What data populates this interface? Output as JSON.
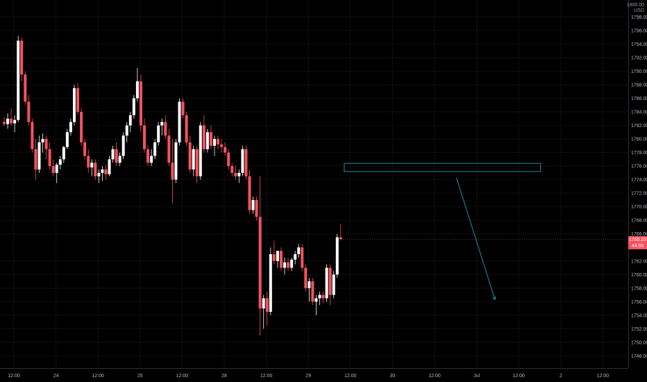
{
  "chart_data": {
    "type": "candlestick",
    "symbol_currency_lines": [
      "1800.00",
      "USD"
    ],
    "y_axis": {
      "ylim": [
        1746.2,
        1800.5
      ],
      "ticks": [
        "1798.00",
        "1796.00",
        "1794.00",
        "1792.00",
        "1790.00",
        "1788.00",
        "1786.00",
        "1784.00",
        "1782.00",
        "1780.00",
        "1778.00",
        "1776.00",
        "1774.00",
        "1772.00",
        "1770.00",
        "1768.00",
        "1766.00",
        "1762.00",
        "1760.00",
        "1758.00",
        "1756.00",
        "1754.00",
        "1752.00",
        "1750.00",
        "1748.00"
      ]
    },
    "x_axis": {
      "ticks": [
        {
          "label": "12:00",
          "bar": 0
        },
        {
          "label": "24",
          "bar": 12
        },
        {
          "label": "12:00",
          "bar": 24
        },
        {
          "label": "25",
          "bar": 36
        },
        {
          "label": "12:00",
          "bar": 48
        },
        {
          "label": "28",
          "bar": 60
        },
        {
          "label": "12:00",
          "bar": 72
        },
        {
          "label": "29",
          "bar": 84
        },
        {
          "label": "12:00",
          "bar": 96
        },
        {
          "label": "30",
          "bar": 108
        },
        {
          "label": "12:00",
          "bar": 120
        },
        {
          "label": "Jul",
          "bar": 132
        },
        {
          "label": "12:00",
          "bar": 144
        },
        {
          "label": "2",
          "bar": 156
        },
        {
          "label": "12:00",
          "bar": 168
        }
      ]
    },
    "last_price": {
      "value": "1765.23",
      "countdown": "44:56",
      "price": 1765.23
    },
    "colors": {
      "up": "#ffffff",
      "down": "#f7525f",
      "zone": "#1e90aa",
      "background": "#000000"
    },
    "annotations": {
      "zone": {
        "bar_start": 97,
        "bar_end": 153,
        "price_top": 1776.4,
        "price_bottom": 1775.2
      },
      "arrow": {
        "from_bar": 129,
        "from_price": 1774.3,
        "to_bar": 140,
        "to_price": 1756.3
      }
    },
    "candles": [
      [
        1782.5,
        1783.2,
        1781.9,
        1782.2
      ],
      [
        1782.2,
        1783.8,
        1781.5,
        1783.0
      ],
      [
        1783.0,
        1784.5,
        1782.0,
        1782.3
      ],
      [
        1782.3,
        1783.5,
        1781.0,
        1782.8
      ],
      [
        1782.8,
        1795.2,
        1782.5,
        1794.5
      ],
      [
        1794.5,
        1795.0,
        1788.5,
        1789.5
      ],
      [
        1789.5,
        1790.0,
        1785.0,
        1785.5
      ],
      [
        1785.5,
        1786.5,
        1782.0,
        1782.5
      ],
      [
        1782.5,
        1783.0,
        1778.0,
        1778.5
      ],
      [
        1778.5,
        1780.0,
        1774.0,
        1775.5
      ],
      [
        1775.5,
        1780.5,
        1775.0,
        1779.5
      ],
      [
        1779.5,
        1780.8,
        1778.0,
        1780.0
      ],
      [
        1780.0,
        1780.5,
        1777.0,
        1778.5
      ],
      [
        1778.5,
        1779.5,
        1775.5,
        1776.0
      ],
      [
        1776.0,
        1777.0,
        1774.5,
        1775.0
      ],
      [
        1775.0,
        1776.5,
        1773.5,
        1776.2
      ],
      [
        1776.2,
        1777.5,
        1775.5,
        1777.0
      ],
      [
        1777.0,
        1779.0,
        1776.5,
        1778.8
      ],
      [
        1778.8,
        1781.5,
        1778.5,
        1781.0
      ],
      [
        1781.0,
        1783.0,
        1780.5,
        1782.5
      ],
      [
        1782.5,
        1788.0,
        1782.0,
        1787.5
      ],
      [
        1787.5,
        1788.2,
        1783.5,
        1784.0
      ],
      [
        1784.0,
        1784.5,
        1779.0,
        1779.5
      ],
      [
        1779.5,
        1780.0,
        1777.0,
        1777.5
      ],
      [
        1777.5,
        1778.5,
        1775.0,
        1775.8
      ],
      [
        1775.8,
        1777.0,
        1774.5,
        1776.5
      ],
      [
        1776.5,
        1777.0,
        1774.0,
        1774.5
      ],
      [
        1774.5,
        1775.5,
        1773.5,
        1775.0
      ],
      [
        1775.0,
        1776.0,
        1773.8,
        1775.5
      ],
      [
        1775.5,
        1776.2,
        1774.0,
        1774.8
      ],
      [
        1774.8,
        1777.5,
        1774.5,
        1777.0
      ],
      [
        1777.0,
        1779.0,
        1776.5,
        1778.5
      ],
      [
        1778.5,
        1779.5,
        1776.0,
        1776.5
      ],
      [
        1776.5,
        1778.0,
        1776.0,
        1777.5
      ],
      [
        1777.5,
        1781.0,
        1777.0,
        1780.5
      ],
      [
        1780.5,
        1782.5,
        1779.5,
        1782.0
      ],
      [
        1782.0,
        1784.0,
        1781.0,
        1783.5
      ],
      [
        1783.5,
        1786.5,
        1783.0,
        1786.0
      ],
      [
        1786.0,
        1790.5,
        1785.5,
        1788.5
      ],
      [
        1788.5,
        1789.5,
        1781.0,
        1782.0
      ],
      [
        1782.0,
        1783.0,
        1778.0,
        1778.5
      ],
      [
        1778.5,
        1779.0,
        1776.0,
        1776.5
      ],
      [
        1776.5,
        1778.5,
        1776.0,
        1777.5
      ],
      [
        1777.5,
        1780.0,
        1777.0,
        1779.5
      ],
      [
        1779.5,
        1782.5,
        1779.0,
        1782.0
      ],
      [
        1782.0,
        1783.0,
        1780.5,
        1782.5
      ],
      [
        1782.5,
        1783.5,
        1780.0,
        1780.5
      ],
      [
        1780.5,
        1781.5,
        1776.0,
        1776.5
      ],
      [
        1776.5,
        1780.0,
        1770.5,
        1774.0
      ],
      [
        1774.0,
        1780.0,
        1773.5,
        1779.5
      ],
      [
        1779.5,
        1786.0,
        1779.0,
        1785.5
      ],
      [
        1785.5,
        1786.0,
        1783.0,
        1783.5
      ],
      [
        1783.5,
        1784.0,
        1779.0,
        1779.5
      ],
      [
        1779.5,
        1780.5,
        1775.0,
        1775.5
      ],
      [
        1775.5,
        1779.0,
        1774.5,
        1778.5
      ],
      [
        1778.5,
        1779.0,
        1773.5,
        1774.5
      ],
      [
        1774.5,
        1782.5,
        1774.0,
        1782.0
      ],
      [
        1782.0,
        1783.5,
        1778.0,
        1778.5
      ],
      [
        1778.5,
        1781.5,
        1778.0,
        1781.0
      ],
      [
        1781.0,
        1782.0,
        1778.5,
        1779.0
      ],
      [
        1779.0,
        1780.5,
        1777.5,
        1780.0
      ],
      [
        1780.0,
        1780.5,
        1778.5,
        1779.2
      ],
      [
        1779.2,
        1780.0,
        1778.0,
        1778.8
      ],
      [
        1778.8,
        1779.5,
        1777.5,
        1778.0
      ],
      [
        1778.0,
        1778.5,
        1775.5,
        1776.0
      ],
      [
        1776.0,
        1776.5,
        1774.5,
        1775.0
      ],
      [
        1775.0,
        1776.0,
        1774.0,
        1774.5
      ],
      [
        1774.5,
        1775.5,
        1773.5,
        1775.0
      ],
      [
        1775.0,
        1779.0,
        1774.5,
        1778.5
      ],
      [
        1778.5,
        1779.0,
        1774.0,
        1774.5
      ],
      [
        1774.5,
        1775.5,
        1769.0,
        1769.5
      ],
      [
        1769.5,
        1771.5,
        1769.0,
        1771.0
      ],
      [
        1771.0,
        1771.5,
        1768.0,
        1768.5
      ],
      [
        1768.5,
        1774.5,
        1751.0,
        1755.0
      ],
      [
        1755.0,
        1757.0,
        1752.0,
        1756.5
      ],
      [
        1756.5,
        1757.5,
        1752.5,
        1754.5
      ],
      [
        1754.5,
        1764.0,
        1754.0,
        1763.0
      ],
      [
        1763.0,
        1765.0,
        1761.5,
        1762.0
      ],
      [
        1762.0,
        1763.5,
        1761.0,
        1763.5
      ],
      [
        1763.5,
        1764.0,
        1760.5,
        1761.0
      ],
      [
        1761.0,
        1762.5,
        1760.0,
        1761.8
      ],
      [
        1761.8,
        1762.5,
        1760.5,
        1761.0
      ],
      [
        1761.0,
        1762.5,
        1760.5,
        1762.2
      ],
      [
        1762.2,
        1763.5,
        1761.5,
        1763.0
      ],
      [
        1763.0,
        1764.5,
        1762.5,
        1764.0
      ],
      [
        1764.0,
        1764.5,
        1760.5,
        1761.0
      ],
      [
        1761.0,
        1761.5,
        1757.5,
        1758.0
      ],
      [
        1758.0,
        1759.5,
        1756.0,
        1759.0
      ],
      [
        1759.0,
        1759.5,
        1755.5,
        1756.0
      ],
      [
        1756.0,
        1757.0,
        1754.0,
        1756.5
      ],
      [
        1756.5,
        1757.5,
        1755.5,
        1757.0
      ],
      [
        1757.0,
        1757.5,
        1755.8,
        1756.5
      ],
      [
        1756.5,
        1761.5,
        1756.0,
        1761.0
      ],
      [
        1761.0,
        1761.5,
        1755.5,
        1757.0
      ],
      [
        1757.0,
        1760.5,
        1756.5,
        1760.0
      ],
      [
        1760.0,
        1766.0,
        1759.5,
        1765.5
      ],
      [
        1765.5,
        1767.5,
        1765.0,
        1765.23
      ]
    ]
  }
}
